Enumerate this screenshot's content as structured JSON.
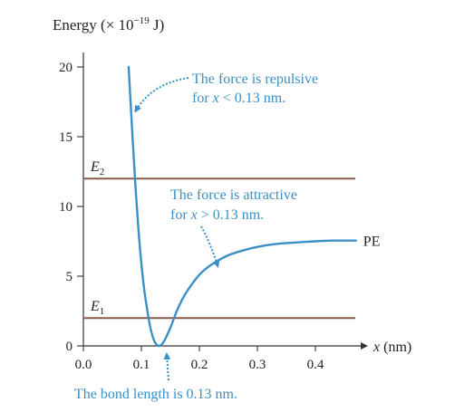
{
  "chart_data": {
    "type": "line",
    "title": "Energy (× 10⁻¹⁹ J)",
    "xlabel": "x (nm)",
    "ylabel": "Energy (× 10⁻¹⁹ J)",
    "xlim": [
      0,
      0.48
    ],
    "ylim": [
      0,
      21
    ],
    "x_ticks": [
      0.0,
      0.1,
      0.2,
      0.3,
      0.4
    ],
    "x_tick_labels": [
      "0.0",
      "0.1",
      "0.2",
      "0.3",
      "0.4"
    ],
    "y_ticks": [
      0,
      5,
      10,
      15,
      20
    ],
    "y_tick_labels": [
      "0",
      "5",
      "10",
      "15",
      "20"
    ],
    "grid": false,
    "series": [
      {
        "name": "PE",
        "color": "#3a8fc7",
        "x": [
          0.078,
          0.085,
          0.09,
          0.095,
          0.1,
          0.105,
          0.11,
          0.115,
          0.12,
          0.125,
          0.13,
          0.135,
          0.14,
          0.15,
          0.16,
          0.17,
          0.18,
          0.2,
          0.22,
          0.25,
          0.28,
          0.3,
          0.33,
          0.36,
          0.4,
          0.43,
          0.45,
          0.47
        ],
        "y": [
          20.0,
          14.8,
          11.3,
          8.3,
          5.9,
          4.0,
          2.6,
          1.4,
          0.6,
          0.15,
          0.0,
          0.1,
          0.4,
          1.3,
          2.4,
          3.3,
          4.0,
          5.1,
          5.8,
          6.5,
          6.9,
          7.1,
          7.3,
          7.4,
          7.5,
          7.55,
          7.55,
          7.55
        ]
      }
    ],
    "levels": [
      {
        "label": "E",
        "sub": "2",
        "value": 12,
        "color": "#8b5a4a"
      },
      {
        "label": "E",
        "sub": "1",
        "value": 2,
        "color": "#8b5a4a"
      }
    ],
    "legend_label": "PE",
    "annotations": [
      {
        "id": "repulsive",
        "line1": "The force is repulsive",
        "line2": "for x < 0.13 nm."
      },
      {
        "id": "attractive",
        "line1": "The force is attractive",
        "line2": "for x > 0.13 nm."
      },
      {
        "id": "bond",
        "line1": "The bond length is 0.13 nm."
      }
    ]
  }
}
